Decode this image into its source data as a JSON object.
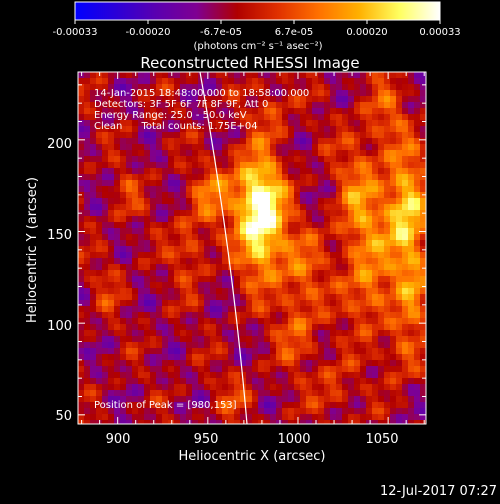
{
  "colorbar": {
    "tick_labels": [
      "-0.00033",
      "-0.00020",
      "-6.7e-05",
      "6.7e-05",
      "0.00020",
      "0.00033"
    ],
    "unit_label": "(photons cm⁻² s⁻¹ asec⁻²)",
    "colors": [
      "#0000ff",
      "#2a00d8",
      "#5a00b0",
      "#7f0092",
      "#b00000",
      "#e03000",
      "#ff7000",
      "#ffb000",
      "#ffff60",
      "#ffffff"
    ]
  },
  "plot": {
    "title": "Reconstructed RHESSI Image",
    "xlabel": "Heliocentric X (arcsec)",
    "ylabel": "Heliocentric Y (arcsec)",
    "xlim": [
      878,
      1071
    ],
    "ylim": [
      45,
      237
    ],
    "x_ticks": [
      900,
      950,
      1000,
      1050
    ],
    "y_ticks": [
      50,
      100,
      150,
      200
    ],
    "annotations": [
      "14-Jan-2015 18:48:00.000 to 18:58:00.000",
      "Detectors: 3F 5F 6F 7F 8F 9F, Att 0",
      "Energy Range: 25.0 - 50.0 keV",
      "Clean      Total counts: 1.75E+04"
    ],
    "peak_label": "Position of Peak = [980,153]",
    "peak": [
      980,
      153
    ]
  },
  "footer": {
    "timestamp": "12-Jul-2017 07:27"
  }
}
